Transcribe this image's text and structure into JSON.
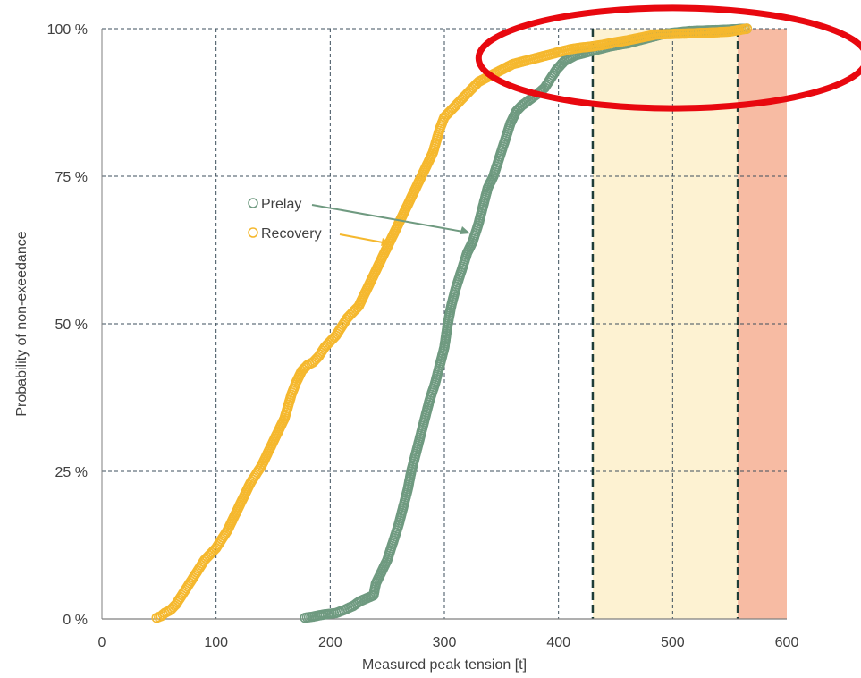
{
  "chart_data": {
    "type": "scatter",
    "title": "",
    "xlabel": "Measured peak tension [t]",
    "ylabel": "Probability of non-exeedance",
    "xlim": [
      0,
      600
    ],
    "ylim": [
      0,
      100
    ],
    "x_ticks": [
      0,
      100,
      200,
      300,
      400,
      500,
      600
    ],
    "x_tick_labels": [
      "0",
      "100",
      "200",
      "300",
      "400",
      "500",
      "600"
    ],
    "y_ticks": [
      0,
      25,
      50,
      75,
      100
    ],
    "y_tick_labels": [
      "0 %",
      "25 %",
      "50 %",
      "75 %",
      "100 %"
    ],
    "grid": true,
    "legend_position": "inside-left",
    "series": [
      {
        "name": "Prelay",
        "color": "#6f9a80",
        "marker": "hollow-circle",
        "points": [
          [
            178,
            0.2
          ],
          [
            185,
            0.4
          ],
          [
            190,
            0.6
          ],
          [
            196,
            0.8
          ],
          [
            205,
            1.0
          ],
          [
            212,
            1.5
          ],
          [
            220,
            2.2
          ],
          [
            226,
            3.0
          ],
          [
            232,
            3.5
          ],
          [
            238,
            4.0
          ],
          [
            240,
            6.0
          ],
          [
            245,
            8.0
          ],
          [
            250,
            10.0
          ],
          [
            255,
            13.0
          ],
          [
            260,
            16.0
          ],
          [
            264,
            19.0
          ],
          [
            268,
            22.0
          ],
          [
            271,
            25.0
          ],
          [
            275,
            28.0
          ],
          [
            279,
            31.0
          ],
          [
            283,
            34.0
          ],
          [
            287,
            37.0
          ],
          [
            292,
            40.0
          ],
          [
            296,
            43.0
          ],
          [
            300,
            46.0
          ],
          [
            303,
            50.0
          ],
          [
            306,
            53.0
          ],
          [
            310,
            56.0
          ],
          [
            315,
            59.0
          ],
          [
            320,
            62.0
          ],
          [
            325,
            64.0
          ],
          [
            330,
            67.0
          ],
          [
            334,
            70.0
          ],
          [
            338,
            73.0
          ],
          [
            343,
            75.0
          ],
          [
            348,
            78.0
          ],
          [
            353,
            81.0
          ],
          [
            358,
            84.0
          ],
          [
            363,
            86.0
          ],
          [
            368,
            87.0
          ],
          [
            375,
            88.0
          ],
          [
            382,
            89.0
          ],
          [
            388,
            90.0
          ],
          [
            393,
            91.5
          ],
          [
            398,
            93.0
          ],
          [
            405,
            94.5
          ],
          [
            415,
            95.5
          ],
          [
            425,
            96.0
          ],
          [
            435,
            96.5
          ],
          [
            445,
            97.0
          ],
          [
            460,
            97.5
          ],
          [
            470,
            98.0
          ],
          [
            480,
            98.5
          ],
          [
            490,
            99.0
          ],
          [
            500,
            99.3
          ],
          [
            515,
            99.6
          ],
          [
            545,
            99.8
          ],
          [
            565,
            100.0
          ]
        ]
      },
      {
        "name": "Recovery",
        "color": "#f5b82e",
        "marker": "hollow-circle",
        "points": [
          [
            48,
            0.2
          ],
          [
            52,
            0.5
          ],
          [
            55,
            1.0
          ],
          [
            60,
            1.5
          ],
          [
            65,
            2.5
          ],
          [
            70,
            4.0
          ],
          [
            75,
            5.5
          ],
          [
            80,
            7.0
          ],
          [
            85,
            8.5
          ],
          [
            90,
            10.0
          ],
          [
            95,
            11.0
          ],
          [
            100,
            12.0
          ],
          [
            105,
            13.5
          ],
          [
            110,
            15.0
          ],
          [
            115,
            17.0
          ],
          [
            120,
            19.0
          ],
          [
            125,
            21.0
          ],
          [
            130,
            23.0
          ],
          [
            135,
            24.5
          ],
          [
            140,
            26.0
          ],
          [
            145,
            28.0
          ],
          [
            150,
            30.0
          ],
          [
            155,
            32.0
          ],
          [
            160,
            34.0
          ],
          [
            163,
            36.0
          ],
          [
            166,
            38.0
          ],
          [
            170,
            40.0
          ],
          [
            175,
            42.0
          ],
          [
            180,
            43.0
          ],
          [
            185,
            43.5
          ],
          [
            190,
            44.5
          ],
          [
            195,
            46.0
          ],
          [
            200,
            47.0
          ],
          [
            205,
            48.0
          ],
          [
            210,
            49.5
          ],
          [
            215,
            51.0
          ],
          [
            220,
            52.0
          ],
          [
            225,
            53.0
          ],
          [
            230,
            55.0
          ],
          [
            235,
            57.0
          ],
          [
            240,
            59.0
          ],
          [
            245,
            61.0
          ],
          [
            250,
            63.0
          ],
          [
            255,
            65.0
          ],
          [
            260,
            67.0
          ],
          [
            265,
            69.0
          ],
          [
            270,
            71.0
          ],
          [
            275,
            73.0
          ],
          [
            280,
            75.0
          ],
          [
            285,
            77.0
          ],
          [
            290,
            79.0
          ],
          [
            293,
            81.0
          ],
          [
            296,
            83.0
          ],
          [
            300,
            85.0
          ],
          [
            310,
            87.0
          ],
          [
            320,
            89.0
          ],
          [
            330,
            91.0
          ],
          [
            340,
            92.0
          ],
          [
            350,
            93.0
          ],
          [
            360,
            94.0
          ],
          [
            370,
            94.5
          ],
          [
            380,
            95.0
          ],
          [
            390,
            95.5
          ],
          [
            400,
            96.0
          ],
          [
            410,
            96.5
          ],
          [
            420,
            96.8
          ],
          [
            430,
            97.0
          ],
          [
            440,
            97.3
          ],
          [
            450,
            97.7
          ],
          [
            460,
            98.0
          ],
          [
            470,
            98.4
          ],
          [
            480,
            98.8
          ],
          [
            485,
            99.0
          ],
          [
            530,
            99.3
          ],
          [
            550,
            99.5
          ],
          [
            565,
            100.0
          ]
        ]
      }
    ],
    "shaded_regions": [
      {
        "x_from": 430,
        "x_to": 557,
        "color": "#fdf2d2"
      },
      {
        "x_from": 557,
        "x_to": 600,
        "color": "#f7bba3"
      }
    ],
    "dashed_vertical_lines": [
      {
        "x": 430,
        "color": "#1f3d38"
      },
      {
        "x": 557,
        "color": "#1f3d38"
      }
    ],
    "highlight_ellipse": {
      "color": "#e8080f",
      "center_x": 500,
      "center_y": 95,
      "radius_x_units": 170,
      "radius_y_units": 8.5
    }
  }
}
